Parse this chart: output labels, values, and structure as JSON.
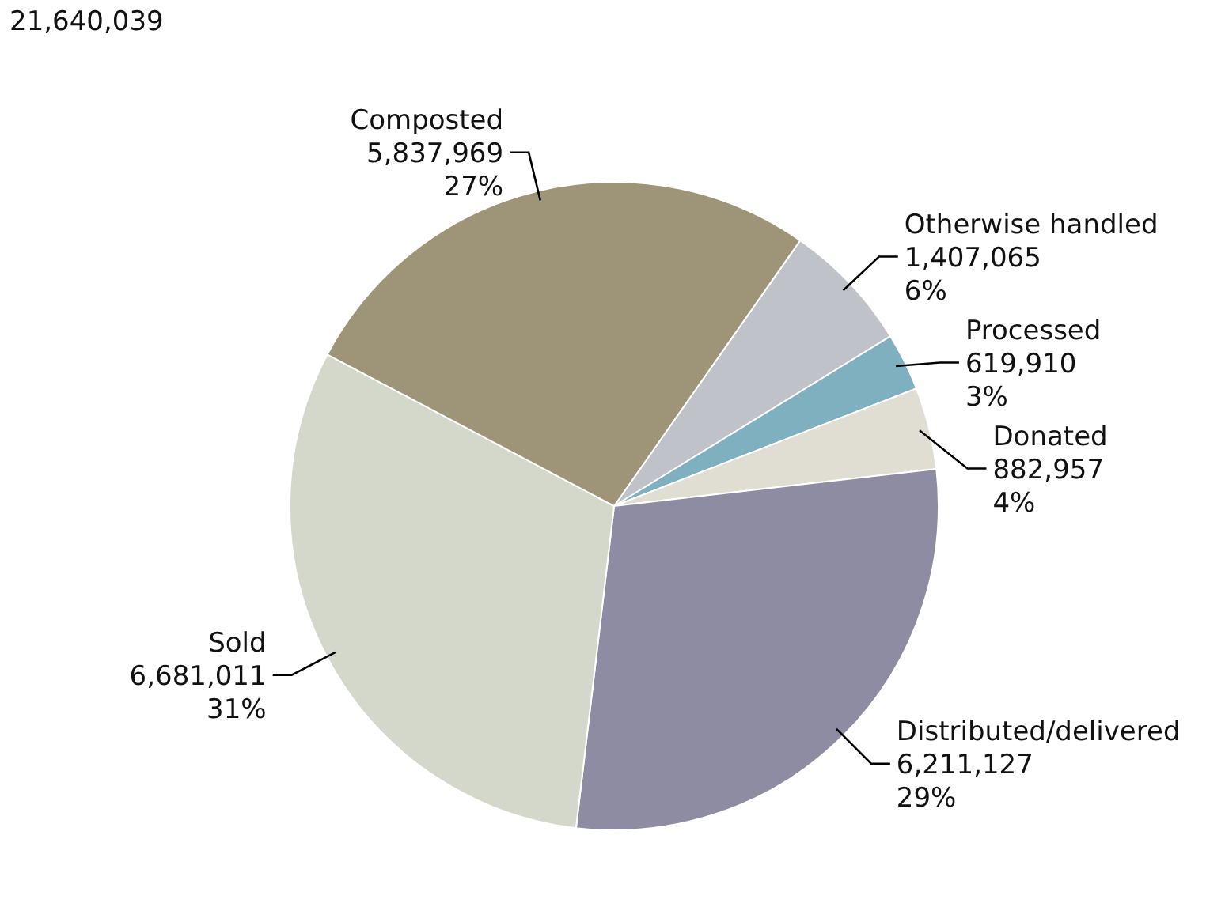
{
  "chart_data": {
    "type": "pie",
    "categories": [
      "Otherwise handled",
      "Processed",
      "Donated",
      "Distributed/delivered",
      "Sold",
      "Composted"
    ],
    "values": [
      1407065,
      619910,
      882957,
      6211127,
      6681011,
      5837969
    ],
    "value_labels": [
      "1,407,065\n6%",
      "619,910\n3%",
      "882,957\n4%",
      "6,211,127\n29%",
      "6,681,011\n31%",
      "5,837,969\n27%"
    ],
    "colors": [
      "#bfc2c8",
      "#7fb0c0",
      "#e0ddd3",
      "#8e8ca2",
      "#d3d8ca",
      "#9e9478"
    ],
    "annotations": [
      "21,640,039"
    ],
    "legend": false
  }
}
